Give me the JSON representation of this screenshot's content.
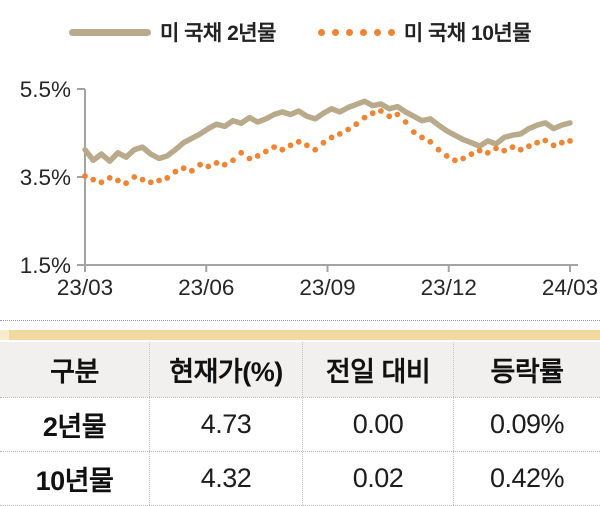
{
  "legend": [
    {
      "label": "미 국채 2년물",
      "style": "solid",
      "color": "#b9aa8c"
    },
    {
      "label": "미 국채 10년물",
      "style": "dotted",
      "color": "#ee8534"
    }
  ],
  "chart_data": {
    "type": "line",
    "title": "",
    "xlabel": "",
    "ylabel": "",
    "x_tick_labels": [
      "23/03",
      "23/06",
      "23/09",
      "23/12",
      "24/03"
    ],
    "y_tick_labels": [
      "5.5%",
      "3.5%",
      "1.5%"
    ],
    "ylim": [
      1.5,
      5.5
    ],
    "grid": false,
    "legend_position": "top",
    "sampling": "weekly estimates read from plot, 23/03 through 24/03",
    "series": [
      {
        "name": "미 국채 2년물",
        "style": "solid",
        "color": "#b9aa8c",
        "values": [
          4.12,
          3.88,
          4.02,
          3.86,
          4.05,
          3.95,
          4.12,
          4.18,
          4.02,
          3.92,
          3.98,
          4.12,
          4.28,
          4.38,
          4.48,
          4.6,
          4.7,
          4.65,
          4.78,
          4.72,
          4.85,
          4.75,
          4.82,
          4.92,
          4.98,
          4.92,
          5.0,
          4.88,
          4.82,
          4.95,
          5.05,
          4.98,
          5.08,
          5.15,
          5.22,
          5.12,
          5.16,
          5.05,
          5.1,
          4.98,
          4.88,
          4.78,
          4.82,
          4.68,
          4.55,
          4.45,
          4.35,
          4.28,
          4.2,
          4.32,
          4.25,
          4.4,
          4.45,
          4.48,
          4.6,
          4.68,
          4.73,
          4.6,
          4.68,
          4.73
        ]
      },
      {
        "name": "미 국채 10년물",
        "style": "dotted",
        "color": "#ee8534",
        "values": [
          3.52,
          3.44,
          3.38,
          3.48,
          3.42,
          3.36,
          3.5,
          3.44,
          3.38,
          3.42,
          3.48,
          3.62,
          3.7,
          3.64,
          3.78,
          3.74,
          3.82,
          3.78,
          3.88,
          4.05,
          3.92,
          3.98,
          4.08,
          4.18,
          4.12,
          4.22,
          4.3,
          4.22,
          4.12,
          4.28,
          4.4,
          4.48,
          4.58,
          4.7,
          4.85,
          4.95,
          5.0,
          4.88,
          4.92,
          4.75,
          4.52,
          4.4,
          4.3,
          4.12,
          3.98,
          3.88,
          3.92,
          4.02,
          4.1,
          4.05,
          4.15,
          4.1,
          4.18,
          4.12,
          4.2,
          4.28,
          4.33,
          4.22,
          4.28,
          4.32
        ]
      }
    ]
  },
  "table": {
    "headers": [
      "구분",
      "현재가(%)",
      "전일 대비",
      "등락률"
    ],
    "rows": [
      [
        "2년물",
        "4.73",
        "0.00",
        "0.09%"
      ],
      [
        "10년물",
        "4.32",
        "0.02",
        "0.42%"
      ]
    ]
  },
  "colors": {
    "line_2y": "#b9aa8c",
    "line_10y": "#ee8534",
    "axis": "#a3a3a3",
    "tick_text": "#262626",
    "gold_bar": "#f1d9a0",
    "gold_bar_light": "#f9ecce",
    "header_bg": "#f1f0ee",
    "dotted_border": "#b5b5b5"
  }
}
